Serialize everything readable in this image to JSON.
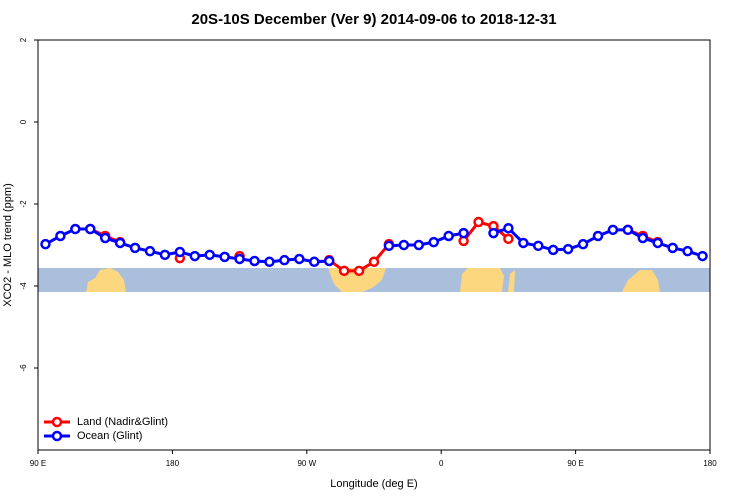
{
  "chart_data": {
    "type": "line",
    "title": "20S-10S December (Ver 9)   2014-09-06 to 2018-12-31",
    "x_label": "Longitude (deg E)",
    "y_label": "XCO2 - MLO trend (ppm)",
    "x": [
      95,
      105,
      115,
      125,
      135,
      145,
      155,
      165,
      175,
      185,
      195,
      205,
      215,
      225,
      235,
      245,
      255,
      265,
      275,
      285,
      295,
      305,
      315,
      325,
      335,
      345,
      355,
      365,
      375,
      385,
      395,
      405,
      415,
      425,
      435,
      445,
      455,
      465,
      475,
      485,
      495,
      505,
      515,
      525,
      535
    ],
    "series": [
      {
        "name": "Land (Nadir&Glint)",
        "color": "#ff0000",
        "values": [
          null,
          null,
          null,
          -2.61,
          -2.78,
          -2.93,
          null,
          null,
          null,
          -3.32,
          null,
          null,
          null,
          -3.27,
          null,
          null,
          null,
          null,
          null,
          -3.37,
          -3.63,
          -3.63,
          -3.41,
          -2.98,
          null,
          null,
          null,
          null,
          -2.9,
          -2.44,
          -2.54,
          -2.85,
          null,
          null,
          null,
          null,
          null,
          null,
          null,
          -2.63,
          -2.78,
          -2.93,
          null,
          null,
          null
        ]
      },
      {
        "name": "Ocean (Glint)",
        "color": "#0000ff",
        "values": [
          -2.98,
          -2.78,
          -2.61,
          -2.61,
          -2.83,
          -2.95,
          -3.07,
          -3.15,
          -3.24,
          -3.17,
          -3.27,
          -3.24,
          -3.29,
          -3.34,
          -3.39,
          -3.41,
          -3.37,
          -3.34,
          -3.41,
          -3.39,
          null,
          null,
          null,
          -3.02,
          -3.0,
          -3.0,
          -2.93,
          -2.78,
          -2.71,
          null,
          -2.71,
          -2.59,
          -2.95,
          -3.02,
          -3.12,
          -3.1,
          -2.98,
          -2.78,
          -2.63,
          -2.63,
          -2.83,
          -2.95,
          -3.07,
          -3.15,
          -3.27
        ]
      }
    ],
    "xlim": [
      90,
      540
    ],
    "xticks": [
      {
        "value": 90,
        "label": "90 E"
      },
      180,
      {
        "value": 270,
        "label": "90 W"
      },
      {
        "value": 360,
        "label": "0"
      },
      {
        "value": 450,
        "label": "90 E"
      },
      {
        "value": 540,
        "label": "180"
      }
    ],
    "ylim": [
      -8,
      2
    ],
    "yticks": [
      2,
      0,
      -2,
      -4,
      -6
    ],
    "legend": "bottom-left"
  }
}
